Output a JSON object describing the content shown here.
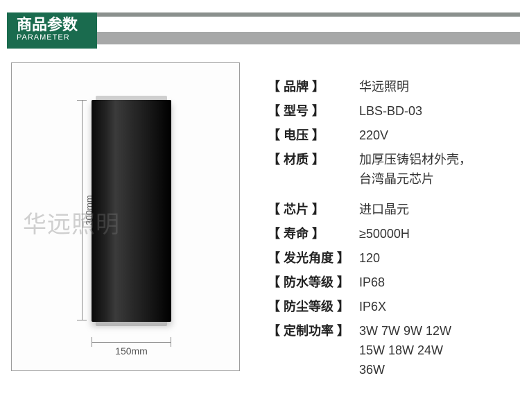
{
  "header": {
    "title": "商品参数",
    "subtitle": "PARAMETER",
    "green_bg": "#1a6b4e",
    "grey_bar": "#a7a8a8"
  },
  "product_image": {
    "watermark": "华远照明",
    "height_label": "300mm",
    "width_label": "150mm"
  },
  "specs": [
    {
      "label": "【 品牌 】",
      "value": "华远照明"
    },
    {
      "label": "【 型号 】",
      "value": "LBS-BD-03"
    },
    {
      "label": "【 电压 】",
      "value": "220V"
    },
    {
      "label": "【 材质 】",
      "value": "加厚压铸铝材外壳，\n台湾晶元芯片"
    },
    {
      "label": "【 芯片 】",
      "value": "进口晶元",
      "gap_before": true
    },
    {
      "label": "【 寿命 】",
      "value": "≥50000H"
    },
    {
      "label": "【 发光角度 】",
      "value": "120"
    },
    {
      "label": "【 防水等级 】",
      "value": "IP68"
    },
    {
      "label": "【 防尘等级 】",
      "value": "IP6X"
    },
    {
      "label": "【 定制功率 】",
      "value": "3W  7W  9W  12W\n15W  18W  24W\n36W"
    }
  ]
}
